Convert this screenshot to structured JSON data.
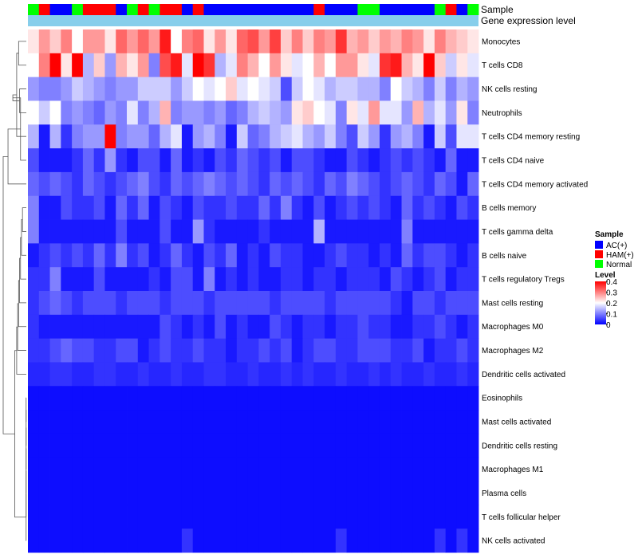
{
  "chart_data": {
    "type": "heatmap",
    "title": "",
    "clustered_rows": true,
    "annotation_labels": {
      "sample": "Sample",
      "gene_expression": "Gene expression level"
    },
    "sample_groups": [
      "Normal",
      "HAM(+)",
      "AC(+)",
      "AC(+)",
      "Normal",
      "HAM(+)",
      "HAM(+)",
      "HAM(+)",
      "AC(+)",
      "Normal",
      "HAM(+)",
      "Normal",
      "HAM(+)",
      "HAM(+)",
      "AC(+)",
      "HAM(+)",
      "AC(+)",
      "AC(+)",
      "AC(+)",
      "AC(+)",
      "AC(+)",
      "AC(+)",
      "AC(+)",
      "AC(+)",
      "AC(+)",
      "AC(+)",
      "HAM(+)",
      "AC(+)",
      "AC(+)",
      "AC(+)",
      "Normal",
      "Normal",
      "AC(+)",
      "AC(+)",
      "AC(+)",
      "AC(+)",
      "AC(+)",
      "Normal",
      "HAM(+)",
      "AC(+)",
      "Normal"
    ],
    "gene_expression_color": "#87ceeb",
    "rows": [
      "Monocytes",
      "T cells CD8",
      "NK cells resting",
      "Neutrophils",
      "T cells CD4 memory resting",
      "T cells CD4 naive",
      "T cells CD4 memory activated",
      "B cells memory",
      "T cells gamma delta",
      "B cells naive",
      "T cells regulatory  Tregs",
      "Mast cells resting",
      "Macrophages M0",
      "Macrophages M2",
      "Dendritic cells activated",
      "Eosinophils",
      "Mast cells activated",
      "Dendritic cells resting",
      "Macrophages M1",
      "Plasma cells",
      "T cells follicular helper",
      "NK cells activated"
    ],
    "values": [
      [
        0.22,
        0.28,
        0.24,
        0.3,
        0.2,
        0.28,
        0.28,
        0.22,
        0.32,
        0.28,
        0.32,
        0.28,
        0.38,
        0.2,
        0.3,
        0.32,
        0.22,
        0.28,
        0.22,
        0.32,
        0.34,
        0.28,
        0.35,
        0.24,
        0.3,
        0.24,
        0.3,
        0.28,
        0.36,
        0.26,
        0.28,
        0.24,
        0.28,
        0.26,
        0.3,
        0.28,
        0.22,
        0.3,
        0.26,
        0.24,
        0.22
      ],
      [
        0.2,
        0.3,
        0.4,
        0.22,
        0.4,
        0.14,
        0.24,
        0.12,
        0.26,
        0.22,
        0.28,
        0.1,
        0.34,
        0.38,
        0.18,
        0.4,
        0.36,
        0.14,
        0.18,
        0.3,
        0.26,
        0.2,
        0.28,
        0.22,
        0.18,
        0.2,
        0.26,
        0.2,
        0.28,
        0.28,
        0.22,
        0.18,
        0.36,
        0.38,
        0.26,
        0.22,
        0.4,
        0.24,
        0.16,
        0.22,
        0.18
      ],
      [
        0.12,
        0.1,
        0.1,
        0.12,
        0.16,
        0.14,
        0.12,
        0.1,
        0.12,
        0.12,
        0.16,
        0.16,
        0.16,
        0.12,
        0.16,
        0.2,
        0.18,
        0.2,
        0.24,
        0.18,
        0.2,
        0.18,
        0.16,
        0.06,
        0.16,
        0.2,
        0.18,
        0.14,
        0.16,
        0.16,
        0.14,
        0.14,
        0.1,
        0.2,
        0.16,
        0.14,
        0.1,
        0.16,
        0.1,
        0.14,
        0.12
      ],
      [
        0.2,
        0.16,
        0.2,
        0.1,
        0.12,
        0.1,
        0.08,
        0.12,
        0.1,
        0.18,
        0.1,
        0.14,
        0.26,
        0.1,
        0.12,
        0.12,
        0.1,
        0.12,
        0.08,
        0.1,
        0.14,
        0.16,
        0.14,
        0.12,
        0.22,
        0.24,
        0.2,
        0.18,
        0.1,
        0.22,
        0.18,
        0.28,
        0.18,
        0.18,
        0.12,
        0.26,
        0.14,
        0.18,
        0.12,
        0.22,
        0.1
      ],
      [
        0.14,
        0.02,
        0.14,
        0.04,
        0.1,
        0.12,
        0.12,
        0.4,
        0.1,
        0.12,
        0.12,
        0.08,
        0.14,
        0.18,
        0.02,
        0.12,
        0.14,
        0.1,
        0.02,
        0.16,
        0.08,
        0.1,
        0.14,
        0.16,
        0.18,
        0.14,
        0.12,
        0.16,
        0.1,
        0.06,
        0.16,
        0.12,
        0.04,
        0.12,
        0.14,
        0.1,
        0.02,
        0.16,
        0.06,
        0.18,
        0.18
      ],
      [
        0.06,
        0.02,
        0.02,
        0.02,
        0.04,
        0.08,
        0.04,
        0.12,
        0.04,
        0.02,
        0.06,
        0.06,
        0.02,
        0.08,
        0.02,
        0.04,
        0.02,
        0.06,
        0.04,
        0.08,
        0.06,
        0.04,
        0.06,
        0.02,
        0.06,
        0.06,
        0.04,
        0.02,
        0.02,
        0.06,
        0.04,
        0.02,
        0.04,
        0.06,
        0.04,
        0.06,
        0.04,
        0.02,
        0.08,
        0.02,
        0.02
      ],
      [
        0.08,
        0.06,
        0.08,
        0.06,
        0.04,
        0.08,
        0.06,
        0.04,
        0.06,
        0.08,
        0.1,
        0.06,
        0.04,
        0.08,
        0.06,
        0.08,
        0.1,
        0.08,
        0.06,
        0.08,
        0.06,
        0.04,
        0.08,
        0.06,
        0.08,
        0.06,
        0.04,
        0.08,
        0.06,
        0.1,
        0.08,
        0.06,
        0.04,
        0.06,
        0.08,
        0.06,
        0.04,
        0.08,
        0.06,
        0.02,
        0.08
      ],
      [
        0.1,
        0.02,
        0.02,
        0.06,
        0.04,
        0.04,
        0.06,
        0.02,
        0.08,
        0.04,
        0.08,
        0.02,
        0.06,
        0.04,
        0.02,
        0.06,
        0.04,
        0.04,
        0.06,
        0.04,
        0.04,
        0.08,
        0.04,
        0.1,
        0.04,
        0.02,
        0.06,
        0.02,
        0.04,
        0.06,
        0.04,
        0.06,
        0.04,
        0.02,
        0.08,
        0.04,
        0.06,
        0.04,
        0.02,
        0.06,
        0.04
      ],
      [
        0.1,
        0.02,
        0.02,
        0.02,
        0.02,
        0.02,
        0.02,
        0.02,
        0.06,
        0.02,
        0.02,
        0.02,
        0.06,
        0.02,
        0.02,
        0.12,
        0.04,
        0.02,
        0.02,
        0.02,
        0.02,
        0.04,
        0.02,
        0.02,
        0.02,
        0.02,
        0.14,
        0.02,
        0.02,
        0.02,
        0.02,
        0.02,
        0.02,
        0.02,
        0.1,
        0.02,
        0.02,
        0.02,
        0.02,
        0.02,
        0.02
      ],
      [
        0.02,
        0.04,
        0.06,
        0.04,
        0.06,
        0.04,
        0.08,
        0.04,
        0.1,
        0.04,
        0.06,
        0.02,
        0.04,
        0.08,
        0.04,
        0.02,
        0.06,
        0.04,
        0.08,
        0.02,
        0.04,
        0.02,
        0.06,
        0.04,
        0.04,
        0.02,
        0.02,
        0.04,
        0.06,
        0.04,
        0.04,
        0.02,
        0.04,
        0.02,
        0.08,
        0.04,
        0.06,
        0.06,
        0.04,
        0.02,
        0.04
      ],
      [
        0.04,
        0.04,
        0.1,
        0.02,
        0.02,
        0.02,
        0.06,
        0.02,
        0.02,
        0.02,
        0.02,
        0.04,
        0.02,
        0.06,
        0.06,
        0.02,
        0.1,
        0.02,
        0.04,
        0.02,
        0.04,
        0.02,
        0.02,
        0.04,
        0.04,
        0.02,
        0.04,
        0.04,
        0.02,
        0.04,
        0.04,
        0.04,
        0.02,
        0.06,
        0.04,
        0.02,
        0.04,
        0.06,
        0.02,
        0.04,
        0.04
      ],
      [
        0.04,
        0.06,
        0.08,
        0.06,
        0.04,
        0.06,
        0.06,
        0.06,
        0.04,
        0.06,
        0.06,
        0.06,
        0.04,
        0.06,
        0.06,
        0.06,
        0.04,
        0.06,
        0.06,
        0.06,
        0.06,
        0.06,
        0.04,
        0.06,
        0.06,
        0.06,
        0.06,
        0.04,
        0.06,
        0.06,
        0.06,
        0.06,
        0.06,
        0.04,
        0.02,
        0.06,
        0.06,
        0.04,
        0.06,
        0.06,
        0.06
      ],
      [
        0.04,
        0.02,
        0.02,
        0.02,
        0.02,
        0.02,
        0.02,
        0.02,
        0.02,
        0.02,
        0.02,
        0.02,
        0.06,
        0.04,
        0.02,
        0.04,
        0.02,
        0.06,
        0.02,
        0.04,
        0.02,
        0.02,
        0.06,
        0.04,
        0.02,
        0.04,
        0.04,
        0.02,
        0.04,
        0.04,
        0.06,
        0.04,
        0.04,
        0.02,
        0.02,
        0.04,
        0.04,
        0.06,
        0.04,
        0.02,
        0.04
      ],
      [
        0.04,
        0.04,
        0.06,
        0.08,
        0.06,
        0.06,
        0.04,
        0.04,
        0.06,
        0.06,
        0.02,
        0.04,
        0.06,
        0.04,
        0.04,
        0.06,
        0.04,
        0.04,
        0.02,
        0.04,
        0.04,
        0.06,
        0.04,
        0.06,
        0.02,
        0.04,
        0.06,
        0.06,
        0.04,
        0.04,
        0.06,
        0.06,
        0.06,
        0.04,
        0.04,
        0.06,
        0.02,
        0.04,
        0.04,
        0.06,
        0.04
      ],
      [
        0.03,
        0.03,
        0.04,
        0.04,
        0.03,
        0.03,
        0.04,
        0.04,
        0.03,
        0.03,
        0.04,
        0.03,
        0.03,
        0.04,
        0.03,
        0.03,
        0.04,
        0.04,
        0.03,
        0.03,
        0.04,
        0.03,
        0.03,
        0.04,
        0.03,
        0.04,
        0.03,
        0.03,
        0.04,
        0.03,
        0.03,
        0.04,
        0.03,
        0.04,
        0.03,
        0.03,
        0.04,
        0.03,
        0.03,
        0.04,
        0.03
      ],
      [
        0.01,
        0.01,
        0.01,
        0.01,
        0.01,
        0.01,
        0.01,
        0.01,
        0.01,
        0.01,
        0.01,
        0.01,
        0.01,
        0.01,
        0.01,
        0.01,
        0.01,
        0.01,
        0.01,
        0.01,
        0.01,
        0.01,
        0.01,
        0.01,
        0.01,
        0.01,
        0.01,
        0.01,
        0.01,
        0.01,
        0.01,
        0.01,
        0.01,
        0.01,
        0.01,
        0.01,
        0.01,
        0.01,
        0.01,
        0.01,
        0.01
      ],
      [
        0.01,
        0.01,
        0.01,
        0.01,
        0.01,
        0.01,
        0.01,
        0.01,
        0.01,
        0.01,
        0.01,
        0.01,
        0.01,
        0.01,
        0.01,
        0.01,
        0.01,
        0.01,
        0.01,
        0.01,
        0.01,
        0.01,
        0.01,
        0.01,
        0.01,
        0.01,
        0.01,
        0.01,
        0.01,
        0.01,
        0.01,
        0.01,
        0.01,
        0.01,
        0.01,
        0.01,
        0.01,
        0.01,
        0.01,
        0.01,
        0.01
      ],
      [
        0.01,
        0.01,
        0.01,
        0.01,
        0.01,
        0.01,
        0.01,
        0.01,
        0.01,
        0.01,
        0.01,
        0.01,
        0.01,
        0.01,
        0.01,
        0.01,
        0.01,
        0.01,
        0.01,
        0.01,
        0.01,
        0.01,
        0.01,
        0.01,
        0.01,
        0.01,
        0.01,
        0.01,
        0.01,
        0.01,
        0.01,
        0.01,
        0.01,
        0.01,
        0.01,
        0.01,
        0.01,
        0.01,
        0.01,
        0.01,
        0.01
      ],
      [
        0.01,
        0.01,
        0.01,
        0.01,
        0.01,
        0.01,
        0.01,
        0.01,
        0.01,
        0.01,
        0.01,
        0.01,
        0.01,
        0.01,
        0.01,
        0.01,
        0.01,
        0.01,
        0.01,
        0.01,
        0.01,
        0.01,
        0.01,
        0.01,
        0.01,
        0.01,
        0.01,
        0.01,
        0.01,
        0.01,
        0.01,
        0.01,
        0.01,
        0.01,
        0.01,
        0.01,
        0.01,
        0.01,
        0.01,
        0.01,
        0.01
      ],
      [
        0.01,
        0.01,
        0.01,
        0.01,
        0.01,
        0.01,
        0.01,
        0.01,
        0.01,
        0.01,
        0.01,
        0.01,
        0.01,
        0.01,
        0.01,
        0.01,
        0.01,
        0.01,
        0.01,
        0.01,
        0.01,
        0.01,
        0.01,
        0.01,
        0.01,
        0.01,
        0.01,
        0.01,
        0.01,
        0.01,
        0.01,
        0.01,
        0.01,
        0.01,
        0.01,
        0.01,
        0.01,
        0.01,
        0.01,
        0.01,
        0.01
      ],
      [
        0.01,
        0.01,
        0.01,
        0.01,
        0.01,
        0.01,
        0.01,
        0.01,
        0.01,
        0.01,
        0.01,
        0.01,
        0.01,
        0.01,
        0.01,
        0.01,
        0.01,
        0.01,
        0.01,
        0.01,
        0.01,
        0.01,
        0.01,
        0.01,
        0.01,
        0.01,
        0.01,
        0.01,
        0.01,
        0.01,
        0.01,
        0.01,
        0.01,
        0.01,
        0.01,
        0.01,
        0.01,
        0.01,
        0.01,
        0.01,
        0.01
      ],
      [
        0.01,
        0.01,
        0.01,
        0.01,
        0.01,
        0.01,
        0.01,
        0.01,
        0.01,
        0.01,
        0.01,
        0.01,
        0.01,
        0.01,
        0.04,
        0.01,
        0.01,
        0.01,
        0.01,
        0.01,
        0.01,
        0.01,
        0.01,
        0.01,
        0.01,
        0.01,
        0.01,
        0.01,
        0.04,
        0.01,
        0.01,
        0.01,
        0.01,
        0.01,
        0.01,
        0.01,
        0.01,
        0.04,
        0.01,
        0.04,
        0.01
      ]
    ],
    "dendrogram": {
      "groups": [
        [
          0,
          1
        ],
        [
          2,
          3
        ],
        [
          22,
          4
        ],
        [
          23,
          24
        ],
        [
          25,
          5
        ],
        [
          26,
          6
        ],
        [
          7,
          8
        ],
        [
          28,
          9
        ],
        [
          29,
          10
        ],
        [
          30,
          11
        ],
        [
          31,
          12
        ],
        [
          32,
          13
        ],
        [
          33,
          14
        ],
        [
          15,
          16
        ],
        [
          35,
          17
        ],
        [
          36,
          18
        ],
        [
          37,
          19
        ],
        [
          38,
          20
        ],
        [
          39,
          21
        ],
        [
          34,
          40
        ],
        [
          27,
          41
        ]
      ],
      "heights": [
        0.4,
        0.35,
        0.5,
        0.7,
        0.3,
        0.95,
        0.2,
        0.25,
        0.3,
        0.35,
        0.4,
        0.45,
        0.5,
        0.01,
        0.01,
        0.01,
        0.01,
        0.01,
        0.01,
        0.6,
        1.2
      ]
    },
    "legend": {
      "sample": {
        "title": "Sample",
        "entries": [
          {
            "label": "AC(+)",
            "color": "#0000ff"
          },
          {
            "label": "HAM(+)",
            "color": "#ff0000"
          },
          {
            "label": "Normal",
            "color": "#00ff00"
          }
        ]
      },
      "level": {
        "title": "Level",
        "range": [
          0,
          0.4
        ],
        "ticks": [
          "0.4",
          "0.3",
          "0.2",
          "0.1",
          "0"
        ],
        "colors": {
          "low": "#0000ff",
          "mid": "#ffffff",
          "high": "#ff0000"
        }
      }
    }
  }
}
